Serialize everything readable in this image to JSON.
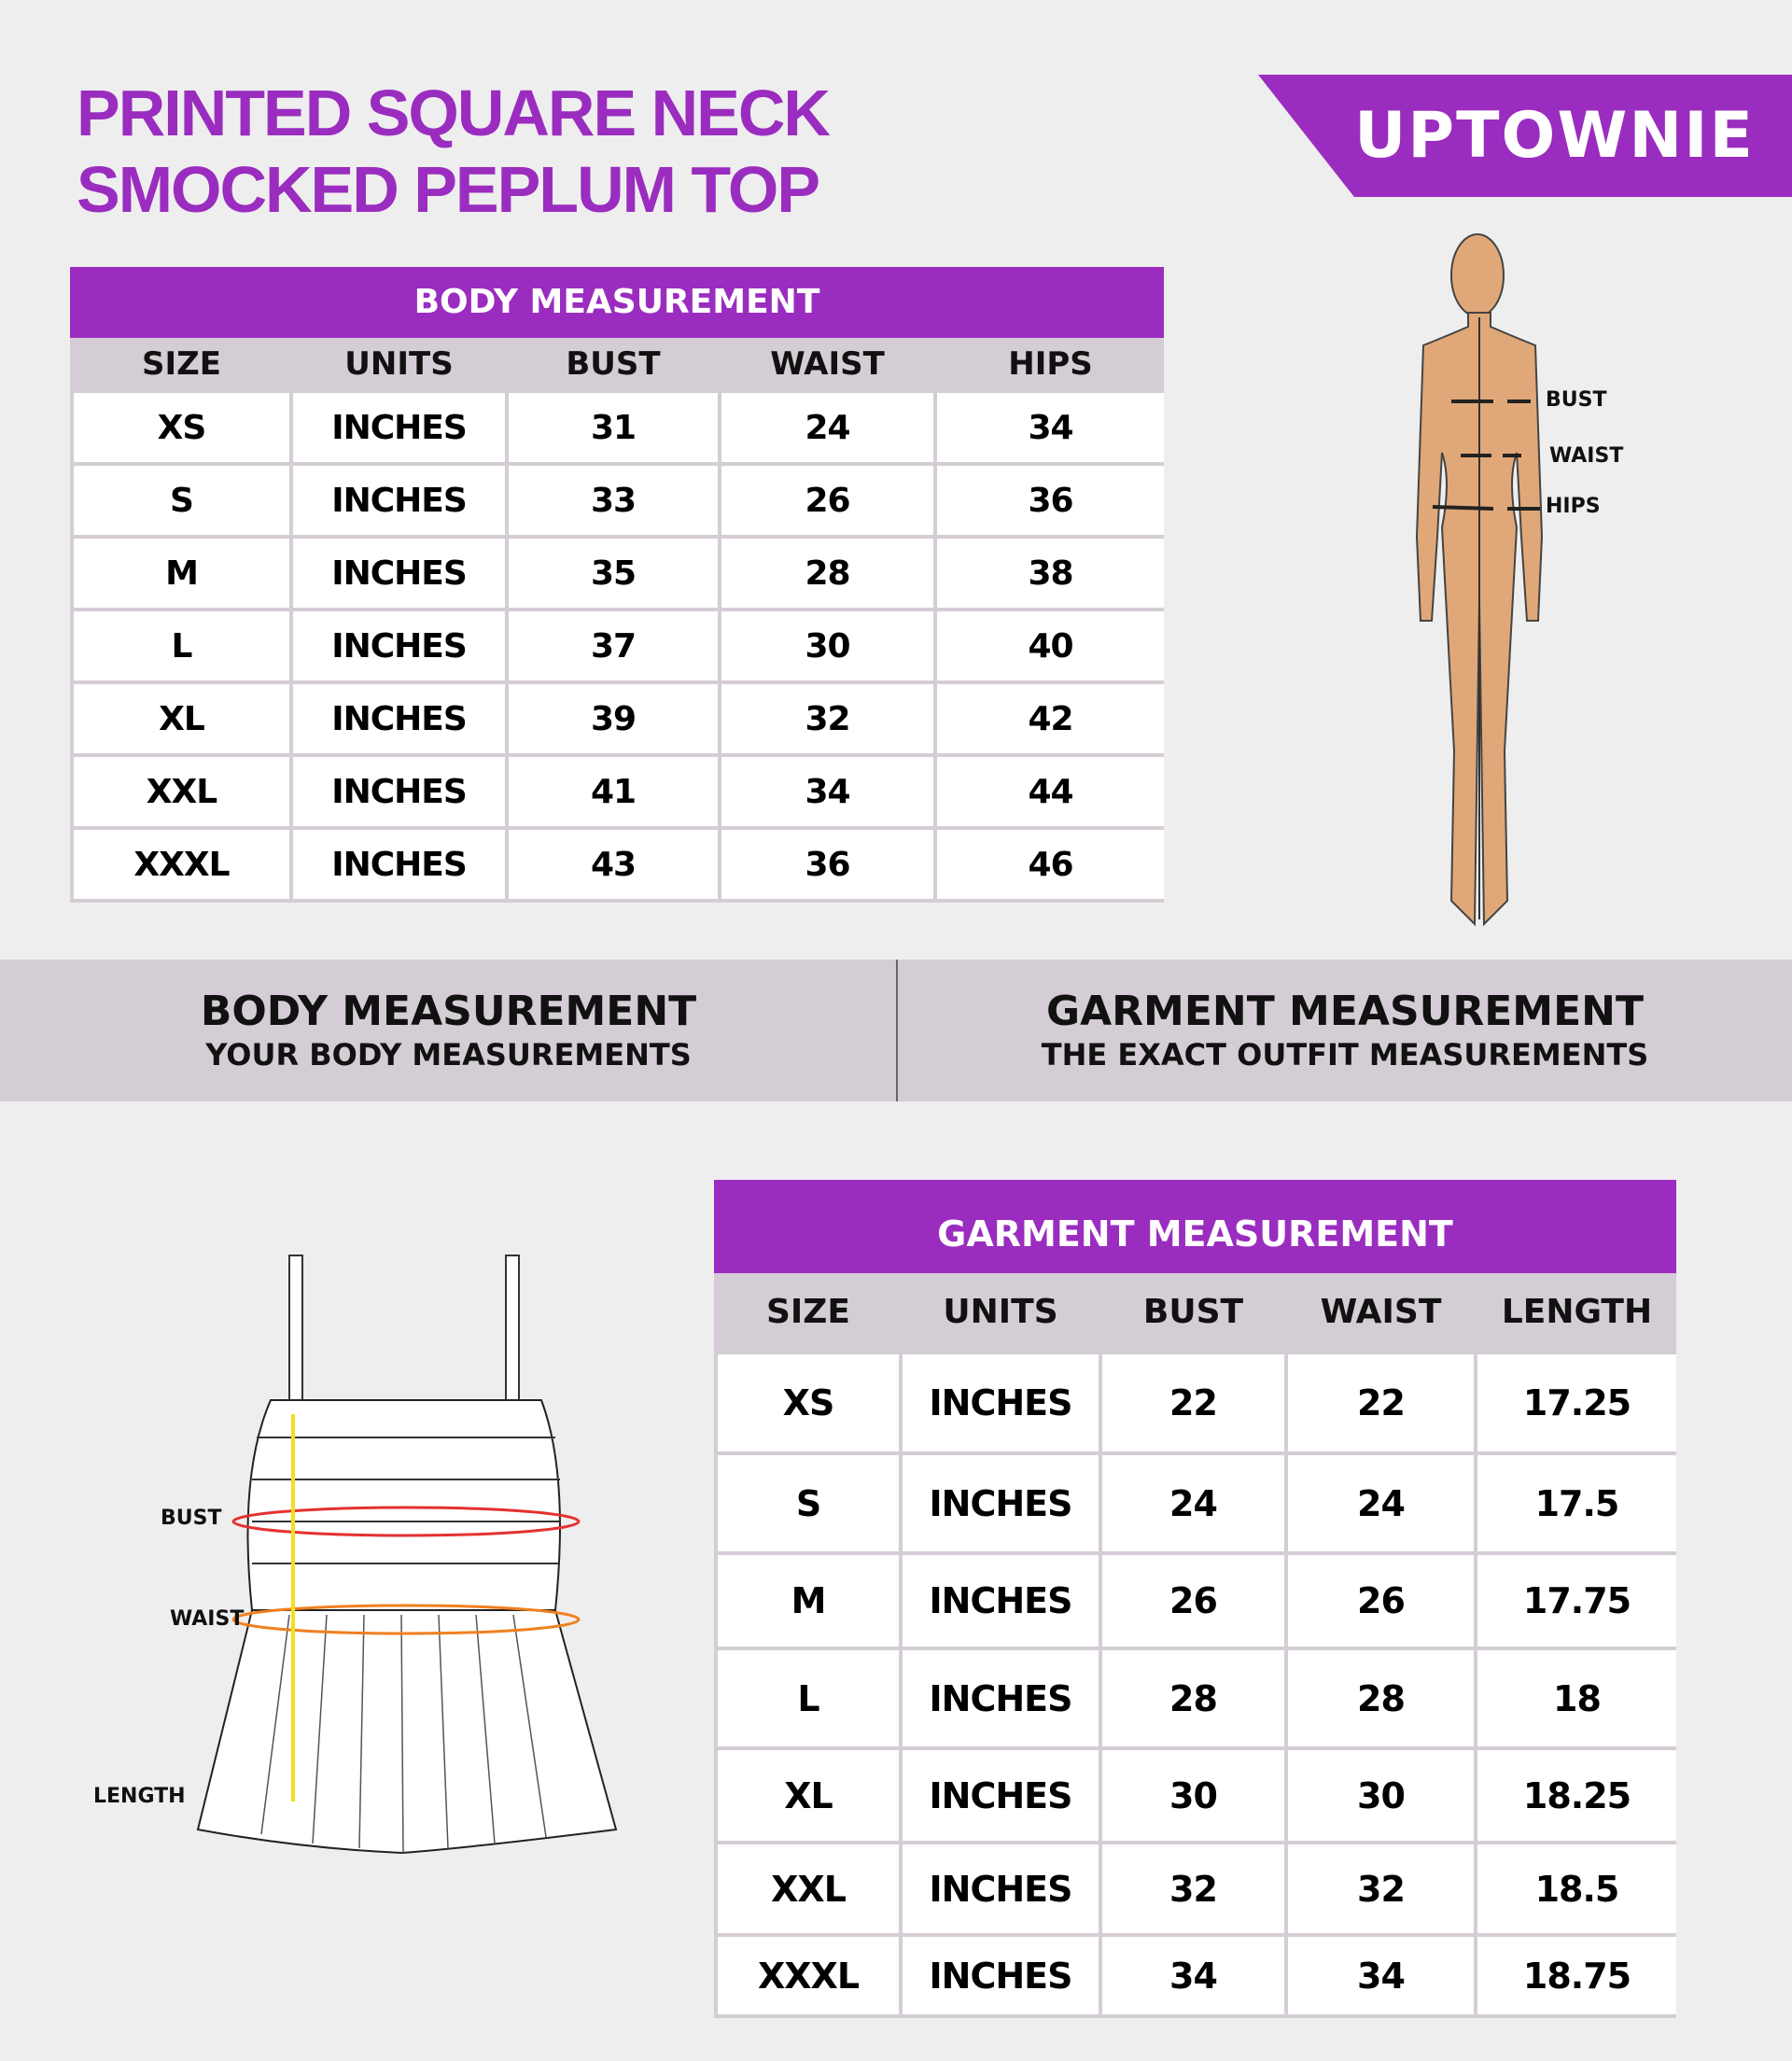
{
  "title": {
    "line1": "PRINTED SQUARE NECK",
    "line2": "SMOCKED PEPLUM TOP"
  },
  "brand": "UPTOWNIE",
  "colors": {
    "accent": "#9a2dbf",
    "header_gray": "#d5cdd5",
    "background": "#eeeeee"
  },
  "body_table": {
    "title": "BODY MEASUREMENT",
    "columns": [
      "SIZE",
      "UNITS",
      "BUST",
      "WAIST",
      "HIPS"
    ],
    "rows": [
      [
        "XS",
        "INCHES",
        "31",
        "24",
        "34"
      ],
      [
        "S",
        "INCHES",
        "33",
        "26",
        "36"
      ],
      [
        "M",
        "INCHES",
        "35",
        "28",
        "38"
      ],
      [
        "L",
        "INCHES",
        "37",
        "30",
        "40"
      ],
      [
        "XL",
        "INCHES",
        "39",
        "32",
        "42"
      ],
      [
        "XXL",
        "INCHES",
        "41",
        "34",
        "44"
      ],
      [
        "XXXL",
        "INCHES",
        "43",
        "36",
        "46"
      ]
    ]
  },
  "figure_labels": {
    "bust": "BUST",
    "waist": "WAIST",
    "hips": "HIPS"
  },
  "band": {
    "left": {
      "heading": "BODY MEASUREMENT",
      "sub": "YOUR BODY MEASUREMENTS"
    },
    "right": {
      "heading": "GARMENT MEASUREMENT",
      "sub": "THE EXACT OUTFIT MEASUREMENTS"
    }
  },
  "garment_labels": {
    "bust": "BUST",
    "waist": "WAIST",
    "length": "LENGTH"
  },
  "garment_table": {
    "title": "GARMENT MEASUREMENT",
    "columns": [
      "SIZE",
      "UNITS",
      "BUST",
      "WAIST",
      "LENGTH"
    ],
    "rows": [
      [
        "XS",
        "INCHES",
        "22",
        "22",
        "17.25"
      ],
      [
        "S",
        "INCHES",
        "24",
        "24",
        "17.5"
      ],
      [
        "M",
        "INCHES",
        "26",
        "26",
        "17.75"
      ],
      [
        "L",
        "INCHES",
        "28",
        "28",
        "18"
      ],
      [
        "XL",
        "INCHES",
        "30",
        "30",
        "18.25"
      ],
      [
        "XXL",
        "INCHES",
        "32",
        "32",
        "18.5"
      ],
      [
        "XXXL",
        "INCHES",
        "34",
        "34",
        "18.75"
      ]
    ]
  }
}
